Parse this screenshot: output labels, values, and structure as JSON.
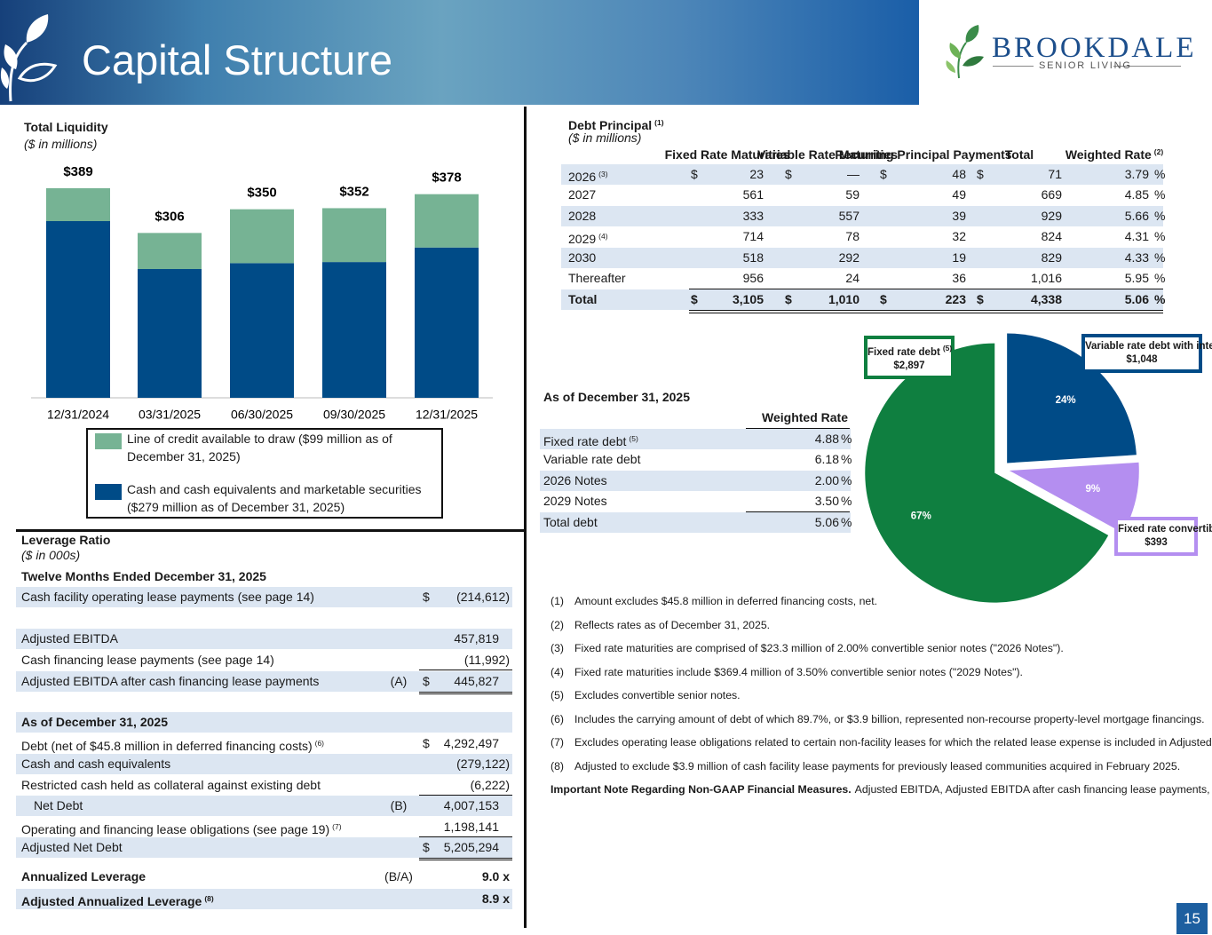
{
  "header": {
    "title": "Capital Structure",
    "logo_name": "BROOKDALE",
    "logo_tagline": "SENIOR LIVING"
  },
  "symbols": {
    "currency": "$",
    "percent": "%"
  },
  "chart_data": [
    {
      "type": "bar",
      "stacked": true,
      "title": "Total Liquidity",
      "subtitle": "($ in millions)",
      "categories": [
        "12/31/2024",
        "03/31/2025",
        "06/30/2025",
        "09/30/2025",
        "12/31/2025"
      ],
      "series": [
        {
          "name": "Cash and cash equivalents and marketable securities ($279 million as of December 31, 2025)",
          "color": "#004b87",
          "values": [
            328,
            239,
            250,
            252,
            279
          ]
        },
        {
          "name": "Line of credit available to draw ($99 million as of December 31, 2025)",
          "color": "#76b394",
          "values": [
            61,
            67,
            100,
            100,
            99
          ]
        }
      ],
      "totals": [
        389,
        306,
        350,
        352,
        378
      ],
      "total_labels": [
        "$389",
        "$306",
        "$350",
        "$352",
        "$378"
      ]
    },
    {
      "type": "pie",
      "categories": [
        "Fixed rate debt",
        "Variable rate debt with interest rate caps and swaps",
        "Fixed rate convertible senior notes"
      ],
      "category_notes": [
        "(5)",
        null,
        null
      ],
      "values": [
        67,
        24,
        9
      ],
      "value_labels": [
        "67%",
        "24%",
        "9%"
      ],
      "amount_labels": [
        "$2,897",
        "$1,048",
        "$393"
      ],
      "colors": [
        "#0f7f40",
        "#004b87",
        "#b48ef0"
      ]
    }
  ],
  "debt_table": {
    "title": "Debt Principal",
    "title_note": "(1)",
    "subtitle": "($ in millions)",
    "columns": [
      "Fixed Rate Maturities",
      "Variable Rate Maturities",
      "Recurring Principal Payments",
      "Total",
      "Weighted Rate"
    ],
    "rate_note": "(2)",
    "rows": [
      {
        "label": "2026",
        "note": "(3)",
        "cells": [
          "23",
          "—",
          "48",
          "71",
          "3.79"
        ]
      },
      {
        "label": "2027",
        "cells": [
          "561",
          "59",
          "49",
          "669",
          "4.85"
        ]
      },
      {
        "label": "2028",
        "cells": [
          "333",
          "557",
          "39",
          "929",
          "5.66"
        ]
      },
      {
        "label": "2029",
        "note": "(4)",
        "cells": [
          "714",
          "78",
          "32",
          "824",
          "4.31"
        ]
      },
      {
        "label": "2030",
        "cells": [
          "518",
          "292",
          "19",
          "829",
          "4.33"
        ]
      },
      {
        "label": "Thereafter",
        "cells": [
          "956",
          "24",
          "36",
          "1,016",
          "5.95"
        ]
      }
    ],
    "total": {
      "label": "Total",
      "cells": [
        "3,105",
        "1,010",
        "223",
        "4,338",
        "5.06"
      ]
    }
  },
  "rate_table": {
    "title": "As of December 31, 2025",
    "column": "Weighted Rate",
    "rows": [
      {
        "label": "Fixed rate debt",
        "note": "(5)",
        "value": "4.88"
      },
      {
        "label": "Variable rate debt",
        "value": "6.18"
      },
      {
        "label": "2026 Notes",
        "value": "2.00"
      },
      {
        "label": "2029 Notes",
        "value": "3.50"
      },
      {
        "label": "Total debt",
        "value": "5.06"
      }
    ]
  },
  "leverage": {
    "title": "Leverage Ratio",
    "subtitle": "($ in 000s)",
    "period": "Twelve Months Ended December 31, 2025",
    "rows": [
      {
        "label": "Cash facility operating lease payments (see page 14)",
        "dollar": true,
        "value": "(214,612)"
      },
      {
        "label": "Adjusted EBITDA",
        "value": "457,819"
      },
      {
        "label": "Cash financing lease payments (see page 14)",
        "value": "(11,992)"
      },
      {
        "label": "Adjusted EBITDA after cash financing lease payments",
        "ref": "(A)",
        "dollar": true,
        "value": "445,827"
      },
      {
        "label": "As of December 31, 2025"
      },
      {
        "label": "Debt (net of $45.8 million in deferred financing costs)",
        "note": "(6)",
        "dollar": true,
        "value": "4,292,497"
      },
      {
        "label": "Cash and cash equivalents",
        "value": "(279,122)"
      },
      {
        "label": "Restricted cash held as collateral against existing debt",
        "value": "(6,222)"
      },
      {
        "label": "Net Debt",
        "ref": "(B)",
        "value": "4,007,153"
      },
      {
        "label": "Operating and financing lease obligations (see page 19)",
        "note": "(7)",
        "value": "1,198,141"
      },
      {
        "label": "Adjusted Net Debt",
        "dollar": true,
        "value": "5,205,294"
      },
      {
        "label": "Annualized Leverage",
        "ref": "(B/A)",
        "value": "9.0 x"
      },
      {
        "label": "Adjusted Annualized Leverage",
        "note": "(8)",
        "value": "8.9 x"
      }
    ]
  },
  "footnotes": [
    {
      "marker": "(1)",
      "text": "Amount excludes $45.8 million in deferred financing costs, net."
    },
    {
      "marker": "(2)",
      "text": "Reflects rates as of December 31, 2025."
    },
    {
      "marker": "(3)",
      "text": "Fixed rate maturities are comprised of $23.3 million of 2.00% convertible senior notes (\"2026 Notes\")."
    },
    {
      "marker": "(4)",
      "text": "Fixed rate maturities include $369.4 million of 3.50% convertible senior notes (\"2029 Notes\")."
    },
    {
      "marker": "(5)",
      "text": "Excludes convertible senior notes."
    },
    {
      "marker": "(6)",
      "text": "Includes the carrying amount of debt of which 89.7%, or $3.9 billion, represented non-recourse property-level mortgage financings."
    },
    {
      "marker": "(7)",
      "text": "Excludes operating lease obligations related to certain non-facility leases for which the related lease expense is included in Adjusted EBITDA."
    },
    {
      "marker": "(8)",
      "text": "Adjusted to exclude $3.9 million of cash facility lease payments for previously leased communities acquired in February 2025."
    }
  ],
  "important_note": {
    "heading": "Important Note Regarding Non-GAAP Financial Measures.",
    "text": "Adjusted EBITDA, Adjusted EBITDA after cash financing lease payments, Net Debt, and Adjusted Net Debt are financial measures that are not calculated in accordance with GAAP. See \"Definitions\" and \"Non-GAAP Financial Measures\" for the definitions of such measures and other important information regarding such measures, including reconciliations to the most comparable GAAP measures."
  },
  "page_number": "15"
}
